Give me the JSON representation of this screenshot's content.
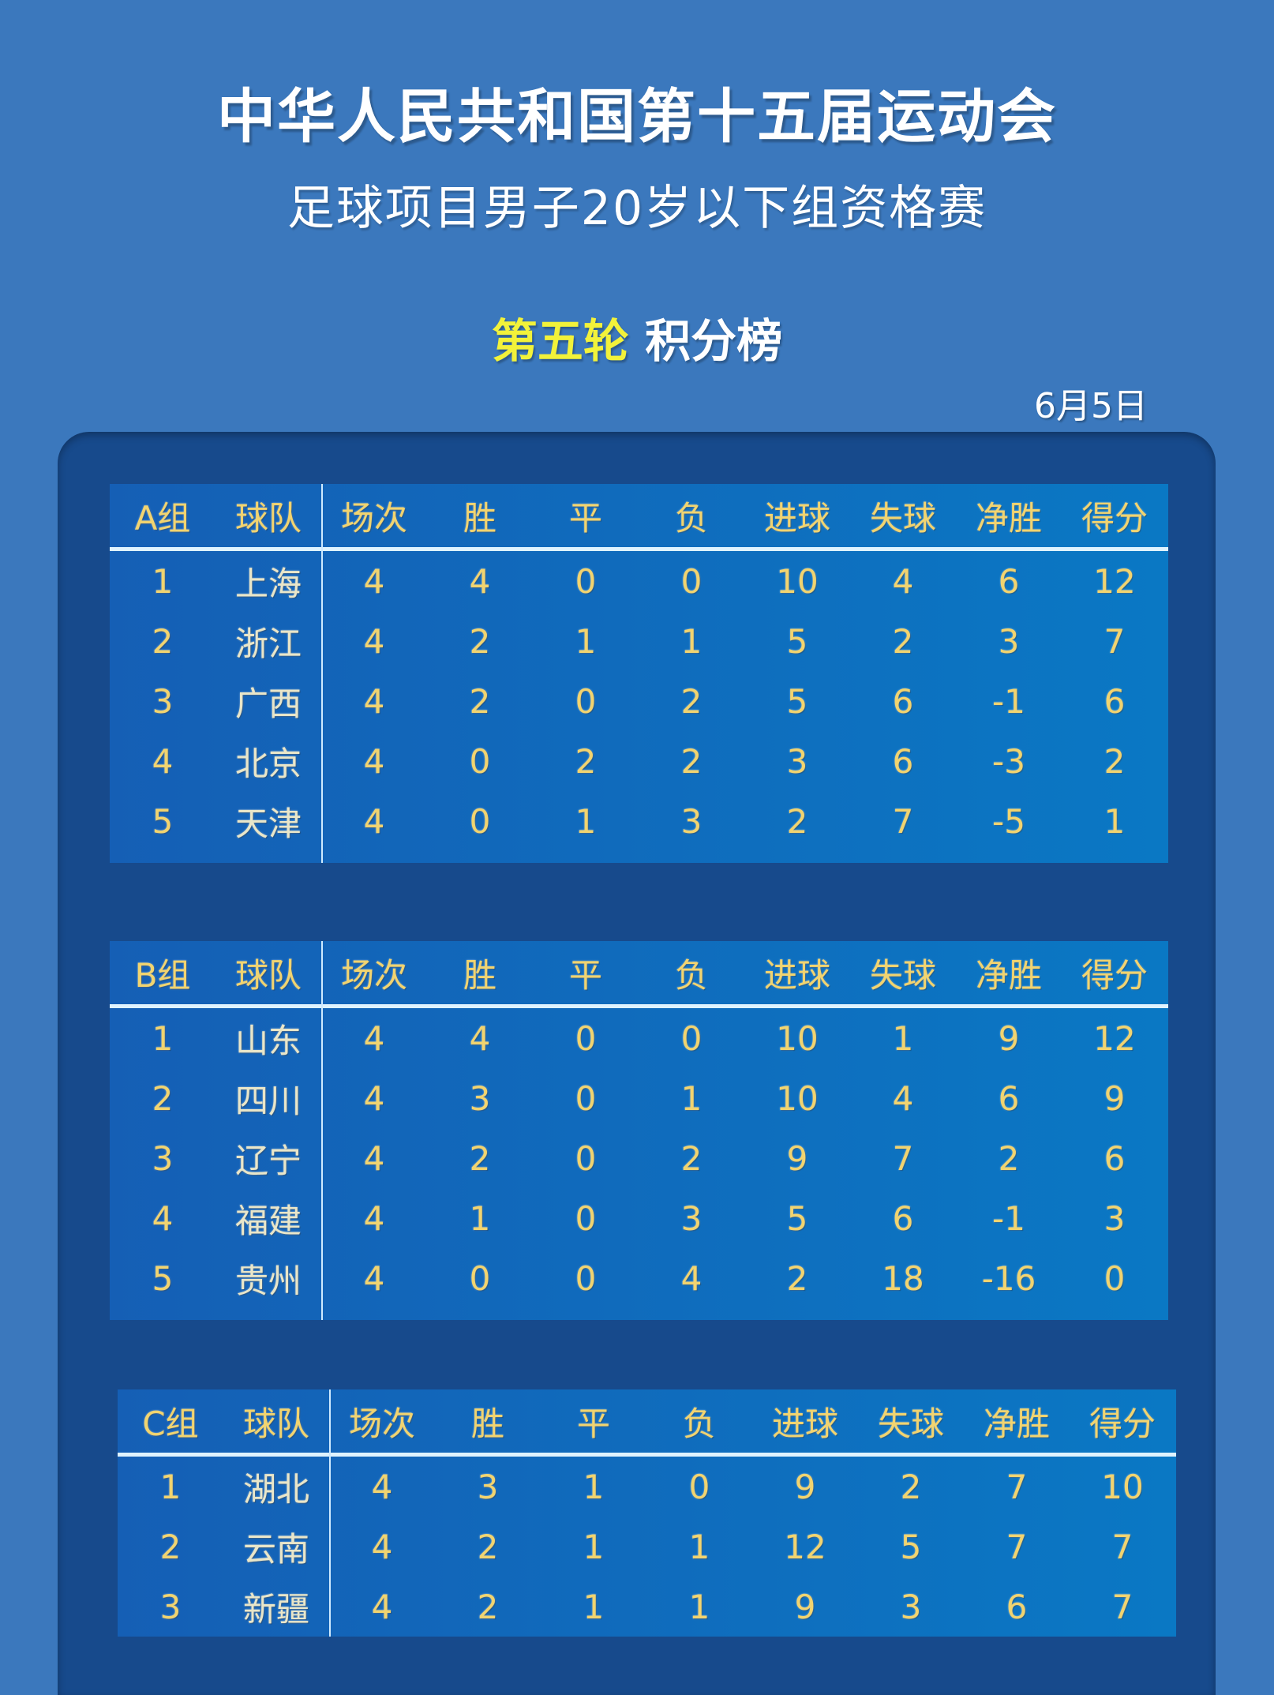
{
  "title": "中华人民共和国第十五届运动会",
  "subtitle": "足球项目男子20岁以下组资格赛",
  "round_highlight": "第五轮",
  "round_label": "积分榜",
  "date": "6月5日",
  "columns": [
    "球队",
    "场次",
    "胜",
    "平",
    "负",
    "进球",
    "失球",
    "净胜",
    "得分"
  ],
  "groups": [
    {
      "name": "A组",
      "rows": [
        [
          "1",
          "上海",
          "4",
          "4",
          "0",
          "0",
          "10",
          "4",
          "6",
          "12"
        ],
        [
          "2",
          "浙江",
          "4",
          "2",
          "1",
          "1",
          "5",
          "2",
          "3",
          "7"
        ],
        [
          "3",
          "广西",
          "4",
          "2",
          "0",
          "2",
          "5",
          "6",
          "-1",
          "6"
        ],
        [
          "4",
          "北京",
          "4",
          "0",
          "2",
          "2",
          "3",
          "6",
          "-3",
          "2"
        ],
        [
          "5",
          "天津",
          "4",
          "0",
          "1",
          "3",
          "2",
          "7",
          "-5",
          "1"
        ]
      ]
    },
    {
      "name": "B组",
      "rows": [
        [
          "1",
          "山东",
          "4",
          "4",
          "0",
          "0",
          "10",
          "1",
          "9",
          "12"
        ],
        [
          "2",
          "四川",
          "4",
          "3",
          "0",
          "1",
          "10",
          "4",
          "6",
          "9"
        ],
        [
          "3",
          "辽宁",
          "4",
          "2",
          "0",
          "2",
          "9",
          "7",
          "2",
          "6"
        ],
        [
          "4",
          "福建",
          "4",
          "1",
          "0",
          "3",
          "5",
          "6",
          "-1",
          "3"
        ],
        [
          "5",
          "贵州",
          "4",
          "0",
          "0",
          "4",
          "2",
          "18",
          "-16",
          "0"
        ]
      ]
    },
    {
      "name": "C组",
      "rows": [
        [
          "1",
          "湖北",
          "4",
          "3",
          "1",
          "0",
          "9",
          "2",
          "7",
          "10"
        ],
        [
          "2",
          "云南",
          "4",
          "2",
          "1",
          "1",
          "12",
          "5",
          "7",
          "7"
        ],
        [
          "3",
          "新疆",
          "4",
          "2",
          "1",
          "1",
          "9",
          "3",
          "6",
          "7"
        ]
      ]
    }
  ]
}
